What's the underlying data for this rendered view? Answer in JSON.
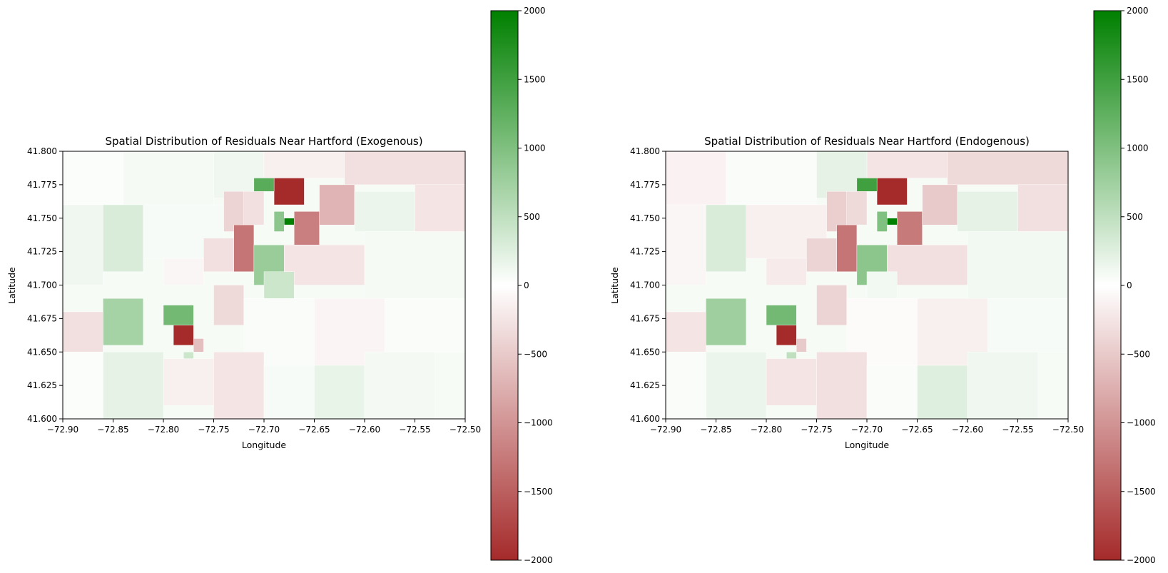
{
  "chart_data": [
    {
      "type": "heatmap",
      "title": "Spatial Distribution of Residuals Near Hartford (Exogenous)",
      "xlabel": "Longitude",
      "ylabel": "Latitude",
      "xlim": [
        -72.9,
        -72.5
      ],
      "ylim": [
        41.6,
        41.8
      ],
      "x_ticks": [
        "−72.90",
        "−72.85",
        "−72.80",
        "−72.75",
        "−72.70",
        "−72.65",
        "−72.60",
        "−72.55",
        "−72.50"
      ],
      "y_ticks": [
        "41.600",
        "41.625",
        "41.650",
        "41.675",
        "41.700",
        "41.725",
        "41.750",
        "41.775",
        "41.800"
      ],
      "colorbar": {
        "range": [
          -2000,
          2000
        ],
        "ticks": [
          "−2000",
          "−1500",
          "−1000",
          "−500",
          "0",
          "500",
          "1000",
          "1500",
          "2000"
        ],
        "colors": {
          "negative": "#a52a2a",
          "zero": "#ffffff",
          "positive": "#008000"
        }
      },
      "regions": [
        {
          "lon": [
            -72.9,
            -72.84
          ],
          "lat": [
            41.76,
            41.8
          ],
          "value": 30
        },
        {
          "lon": [
            -72.84,
            -72.75
          ],
          "lat": [
            41.76,
            41.8
          ],
          "value": 80
        },
        {
          "lon": [
            -72.75,
            -72.7
          ],
          "lat": [
            41.765,
            41.8
          ],
          "value": 120
        },
        {
          "lon": [
            -72.7,
            -72.62
          ],
          "lat": [
            41.78,
            41.8
          ],
          "value": -150
        },
        {
          "lon": [
            -72.62,
            -72.5
          ],
          "lat": [
            41.775,
            41.8
          ],
          "value": -300
        },
        {
          "lon": [
            -72.9,
            -72.86
          ],
          "lat": [
            41.7,
            41.76
          ],
          "value": 120
        },
        {
          "lon": [
            -72.86,
            -72.82
          ],
          "lat": [
            41.71,
            41.76
          ],
          "value": 300
        },
        {
          "lon": [
            -72.82,
            -72.74
          ],
          "lat": [
            41.72,
            41.76
          ],
          "value": 60
        },
        {
          "lon": [
            -72.74,
            -72.72
          ],
          "lat": [
            41.74,
            41.77
          ],
          "value": -400
        },
        {
          "lon": [
            -72.72,
            -72.7
          ],
          "lat": [
            41.745,
            41.77
          ],
          "value": -300
        },
        {
          "lon": [
            -72.69,
            -72.66
          ],
          "lat": [
            41.76,
            41.78
          ],
          "value": -2000
        },
        {
          "lon": [
            -72.71,
            -72.69
          ],
          "lat": [
            41.77,
            41.78
          ],
          "value": 1300
        },
        {
          "lon": [
            -72.68,
            -72.67
          ],
          "lat": [
            41.745,
            41.75
          ],
          "value": 2000
        },
        {
          "lon": [
            -72.69,
            -72.68
          ],
          "lat": [
            41.74,
            41.755
          ],
          "value": 900
        },
        {
          "lon": [
            -72.67,
            -72.645
          ],
          "lat": [
            41.73,
            41.755
          ],
          "value": -1200
        },
        {
          "lon": [
            -72.645,
            -72.61
          ],
          "lat": [
            41.745,
            41.775
          ],
          "value": -700
        },
        {
          "lon": [
            -72.61,
            -72.55
          ],
          "lat": [
            41.74,
            41.77
          ],
          "value": 150
        },
        {
          "lon": [
            -72.55,
            -72.5
          ],
          "lat": [
            41.74,
            41.775
          ],
          "value": -250
        },
        {
          "lon": [
            -72.73,
            -72.71
          ],
          "lat": [
            41.71,
            41.745
          ],
          "value": -1300
        },
        {
          "lon": [
            -72.71,
            -72.68
          ],
          "lat": [
            41.7,
            41.73
          ],
          "value": 800
        },
        {
          "lon": [
            -72.76,
            -72.73
          ],
          "lat": [
            41.71,
            41.735
          ],
          "value": -300
        },
        {
          "lon": [
            -72.8,
            -72.76
          ],
          "lat": [
            41.7,
            41.72
          ],
          "value": -80
        },
        {
          "lon": [
            -72.68,
            -72.6
          ],
          "lat": [
            41.7,
            41.73
          ],
          "value": -250
        },
        {
          "lon": [
            -72.6,
            -72.5
          ],
          "lat": [
            41.69,
            41.74
          ],
          "value": 80
        },
        {
          "lon": [
            -72.86,
            -72.82
          ],
          "lat": [
            41.655,
            41.69
          ],
          "value": 700
        },
        {
          "lon": [
            -72.8,
            -72.77
          ],
          "lat": [
            41.67,
            41.685
          ],
          "value": 1100
        },
        {
          "lon": [
            -72.79,
            -72.77
          ],
          "lat": [
            41.655,
            41.67
          ],
          "value": -2000
        },
        {
          "lon": [
            -72.77,
            -72.76
          ],
          "lat": [
            41.65,
            41.66
          ],
          "value": -600
        },
        {
          "lon": [
            -72.78,
            -72.77
          ],
          "lat": [
            41.64,
            41.65
          ],
          "value": 400
        },
        {
          "lon": [
            -72.9,
            -72.86
          ],
          "lat": [
            41.65,
            41.68
          ],
          "value": -300
        },
        {
          "lon": [
            -72.75,
            -72.72
          ],
          "lat": [
            41.67,
            41.7
          ],
          "value": -350
        },
        {
          "lon": [
            -72.7,
            -72.67
          ],
          "lat": [
            41.69,
            41.71
          ],
          "value": 400
        },
        {
          "lon": [
            -72.72,
            -72.65
          ],
          "lat": [
            41.64,
            41.69
          ],
          "value": 50
        },
        {
          "lon": [
            -72.65,
            -72.58
          ],
          "lat": [
            41.64,
            41.69
          ],
          "value": -100
        },
        {
          "lon": [
            -72.58,
            -72.5
          ],
          "lat": [
            41.65,
            41.69
          ],
          "value": 40
        },
        {
          "lon": [
            -72.8,
            -72.75
          ],
          "lat": [
            41.61,
            41.645
          ],
          "value": -150
        },
        {
          "lon": [
            -72.75,
            -72.7
          ],
          "lat": [
            41.6,
            41.65
          ],
          "value": -250
        },
        {
          "lon": [
            -72.7,
            -72.65
          ],
          "lat": [
            41.6,
            41.64
          ],
          "value": 60
        },
        {
          "lon": [
            -72.65,
            -72.6
          ],
          "lat": [
            41.6,
            41.64
          ],
          "value": 180
        },
        {
          "lon": [
            -72.6,
            -72.53
          ],
          "lat": [
            41.6,
            41.65
          ],
          "value": 90
        },
        {
          "lon": [
            -72.86,
            -72.8
          ],
          "lat": [
            41.6,
            41.65
          ],
          "value": 200
        },
        {
          "lon": [
            -72.9,
            -72.86
          ],
          "lat": [
            41.6,
            41.65
          ],
          "value": 30
        }
      ]
    },
    {
      "type": "heatmap",
      "title": "Spatial Distribution of Residuals Near Hartford (Endogenous)",
      "xlabel": "Longitude",
      "ylabel": "Latitude",
      "xlim": [
        -72.9,
        -72.5
      ],
      "ylim": [
        41.6,
        41.8
      ],
      "x_ticks": [
        "−72.90",
        "−72.85",
        "−72.80",
        "−72.75",
        "−72.70",
        "−72.65",
        "−72.60",
        "−72.55",
        "−72.50"
      ],
      "y_ticks": [
        "41.600",
        "41.625",
        "41.650",
        "41.675",
        "41.700",
        "41.725",
        "41.750",
        "41.775",
        "41.800"
      ],
      "colorbar": {
        "range": [
          -2000,
          2000
        ],
        "ticks": [
          "−2000",
          "−1500",
          "−1000",
          "−500",
          "0",
          "500",
          "1000",
          "1500",
          "2000"
        ],
        "colors": {
          "negative": "#a52a2a",
          "zero": "#ffffff",
          "positive": "#008000"
        }
      },
      "regions": [
        {
          "lon": [
            -72.9,
            -72.84
          ],
          "lat": [
            41.76,
            41.8
          ],
          "value": -120
        },
        {
          "lon": [
            -72.84,
            -72.75
          ],
          "lat": [
            41.76,
            41.8
          ],
          "value": 50
        },
        {
          "lon": [
            -72.75,
            -72.7
          ],
          "lat": [
            41.765,
            41.8
          ],
          "value": 200
        },
        {
          "lon": [
            -72.7,
            -72.62
          ],
          "lat": [
            41.78,
            41.8
          ],
          "value": -250
        },
        {
          "lon": [
            -72.62,
            -72.5
          ],
          "lat": [
            41.775,
            41.8
          ],
          "value": -350
        },
        {
          "lon": [
            -72.9,
            -72.86
          ],
          "lat": [
            41.7,
            41.76
          ],
          "value": -80
        },
        {
          "lon": [
            -72.86,
            -72.82
          ],
          "lat": [
            41.71,
            41.76
          ],
          "value": 300
        },
        {
          "lon": [
            -72.82,
            -72.74
          ],
          "lat": [
            41.72,
            41.76
          ],
          "value": -150
        },
        {
          "lon": [
            -72.74,
            -72.72
          ],
          "lat": [
            41.74,
            41.77
          ],
          "value": -450
        },
        {
          "lon": [
            -72.72,
            -72.7
          ],
          "lat": [
            41.745,
            41.77
          ],
          "value": -350
        },
        {
          "lon": [
            -72.69,
            -72.66
          ],
          "lat": [
            41.76,
            41.78
          ],
          "value": -2000
        },
        {
          "lon": [
            -72.71,
            -72.69
          ],
          "lat": [
            41.77,
            41.78
          ],
          "value": 1500
        },
        {
          "lon": [
            -72.68,
            -72.67
          ],
          "lat": [
            41.745,
            41.75
          ],
          "value": 2000
        },
        {
          "lon": [
            -72.69,
            -72.68
          ],
          "lat": [
            41.74,
            41.755
          ],
          "value": 1000
        },
        {
          "lon": [
            -72.67,
            -72.645
          ],
          "lat": [
            41.73,
            41.755
          ],
          "value": -1250
        },
        {
          "lon": [
            -72.645,
            -72.61
          ],
          "lat": [
            41.745,
            41.775
          ],
          "value": -500
        },
        {
          "lon": [
            -72.61,
            -72.55
          ],
          "lat": [
            41.74,
            41.77
          ],
          "value": 200
        },
        {
          "lon": [
            -72.55,
            -72.5
          ],
          "lat": [
            41.74,
            41.775
          ],
          "value": -300
        },
        {
          "lon": [
            -72.73,
            -72.71
          ],
          "lat": [
            41.71,
            41.745
          ],
          "value": -1300
        },
        {
          "lon": [
            -72.71,
            -72.68
          ],
          "lat": [
            41.7,
            41.73
          ],
          "value": 900
        },
        {
          "lon": [
            -72.76,
            -72.73
          ],
          "lat": [
            41.71,
            41.735
          ],
          "value": -400
        },
        {
          "lon": [
            -72.8,
            -72.76
          ],
          "lat": [
            41.7,
            41.72
          ],
          "value": -200
        },
        {
          "lon": [
            -72.68,
            -72.6
          ],
          "lat": [
            41.7,
            41.73
          ],
          "value": -300
        },
        {
          "lon": [
            -72.6,
            -72.5
          ],
          "lat": [
            41.69,
            41.74
          ],
          "value": 100
        },
        {
          "lon": [
            -72.86,
            -72.82
          ],
          "lat": [
            41.655,
            41.69
          ],
          "value": 750
        },
        {
          "lon": [
            -72.8,
            -72.77
          ],
          "lat": [
            41.67,
            41.685
          ],
          "value": 1100
        },
        {
          "lon": [
            -72.79,
            -72.77
          ],
          "lat": [
            41.655,
            41.67
          ],
          "value": -2000
        },
        {
          "lon": [
            -72.77,
            -72.76
          ],
          "lat": [
            41.65,
            41.66
          ],
          "value": -500
        },
        {
          "lon": [
            -72.78,
            -72.77
          ],
          "lat": [
            41.64,
            41.65
          ],
          "value": 500
        },
        {
          "lon": [
            -72.9,
            -72.86
          ],
          "lat": [
            41.65,
            41.68
          ],
          "value": -250
        },
        {
          "lon": [
            -72.75,
            -72.72
          ],
          "lat": [
            41.67,
            41.7
          ],
          "value": -400
        },
        {
          "lon": [
            -72.7,
            -72.67
          ],
          "lat": [
            41.69,
            41.71
          ],
          "value": 100
        },
        {
          "lon": [
            -72.72,
            -72.65
          ],
          "lat": [
            41.64,
            41.69
          ],
          "value": -50
        },
        {
          "lon": [
            -72.65,
            -72.58
          ],
          "lat": [
            41.64,
            41.69
          ],
          "value": -150
        },
        {
          "lon": [
            -72.58,
            -72.5
          ],
          "lat": [
            41.65,
            41.69
          ],
          "value": 60
        },
        {
          "lon": [
            -72.8,
            -72.75
          ],
          "lat": [
            41.61,
            41.645
          ],
          "value": -250
        },
        {
          "lon": [
            -72.75,
            -72.7
          ],
          "lat": [
            41.6,
            41.65
          ],
          "value": -300
        },
        {
          "lon": [
            -72.7,
            -72.65
          ],
          "lat": [
            41.6,
            41.64
          ],
          "value": 40
        },
        {
          "lon": [
            -72.65,
            -72.6
          ],
          "lat": [
            41.6,
            41.64
          ],
          "value": 250
        },
        {
          "lon": [
            -72.6,
            -72.53
          ],
          "lat": [
            41.6,
            41.65
          ],
          "value": 120
        },
        {
          "lon": [
            -72.86,
            -72.8
          ],
          "lat": [
            41.6,
            41.65
          ],
          "value": 150
        },
        {
          "lon": [
            -72.9,
            -72.86
          ],
          "lat": [
            41.6,
            41.65
          ],
          "value": 50
        }
      ]
    }
  ]
}
